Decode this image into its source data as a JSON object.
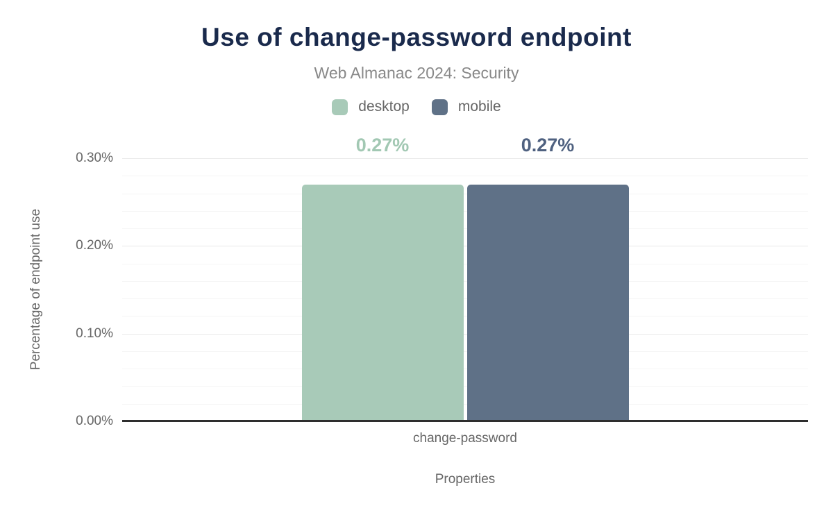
{
  "chart_data": {
    "type": "bar",
    "title": "Use of change-password endpoint",
    "subtitle": "Web Almanac 2024: Security",
    "categories": [
      "change-password"
    ],
    "series": [
      {
        "name": "desktop",
        "color": "#a8cab8",
        "label_color": "#a2c8b3",
        "values": [
          0.27
        ],
        "labels": [
          "0.27%"
        ]
      },
      {
        "name": "mobile",
        "color": "#5f7187",
        "label_color": "#4f6180",
        "values": [
          0.27
        ],
        "labels": [
          "0.27%"
        ]
      }
    ],
    "xlabel": "Properties",
    "ylabel": "Percentage of endpoint use",
    "ylim": [
      0,
      0.3
    ],
    "y_major_step": 0.1,
    "y_minor_step": 0.02,
    "y_tick_labels": [
      "0.00%",
      "0.10%",
      "0.20%",
      "0.30%"
    ],
    "grid": true,
    "legend_position": "top",
    "baseline_color": "#2e2e2e",
    "title_color": "#1a2a4c"
  }
}
